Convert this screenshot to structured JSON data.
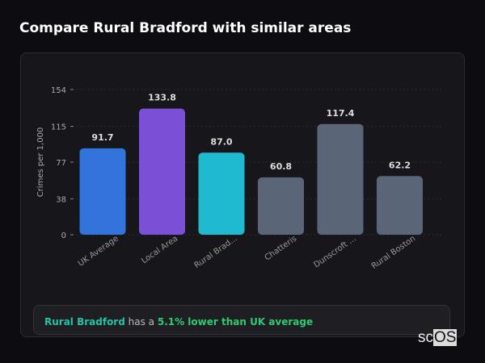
{
  "title": "Compare Rural Bradford with similar areas",
  "chart_data": {
    "type": "bar",
    "ylabel": "Crimes per 1,000",
    "ylim": [
      0,
      154
    ],
    "yticks": [
      0,
      38,
      77,
      115,
      154
    ],
    "grid": true,
    "categories": [
      "UK Average",
      "Local Area",
      "Rural Brad...",
      "Chatteris",
      "Dunscroft ...",
      "Rural Boston"
    ],
    "values": [
      91.7,
      133.8,
      87.0,
      60.8,
      117.4,
      62.2
    ],
    "data_labels": [
      "91.7",
      "133.8",
      "87.0",
      "60.8",
      "117.4",
      "62.2"
    ],
    "colors": [
      "#3273dc",
      "#7b4fd6",
      "#1fbad0",
      "#5a6578",
      "#5a6578",
      "#5a6578"
    ]
  },
  "footer": {
    "area": "Rural Bradford",
    "text": " has a ",
    "comparison": "5.1% lower than UK average"
  },
  "logo": {
    "prefix": "sc",
    "suffix": "OS"
  }
}
